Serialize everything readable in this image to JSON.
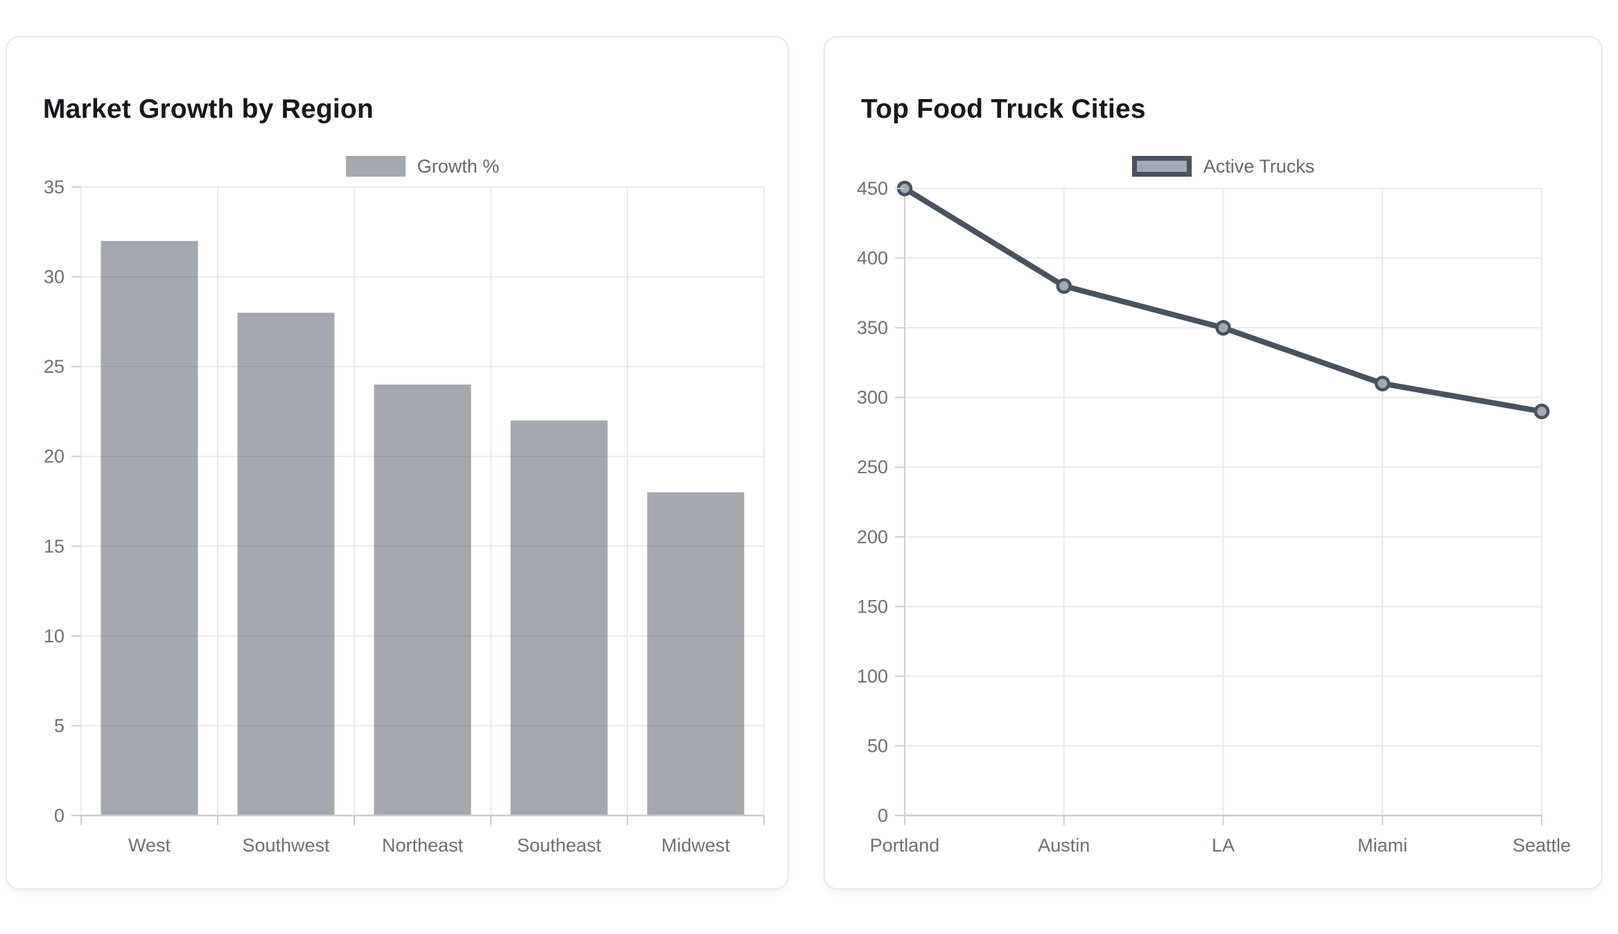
{
  "chart_data": [
    {
      "type": "bar",
      "title": "Market Growth by Region",
      "categories": [
        "West",
        "Southwest",
        "Northeast",
        "Southeast",
        "Midwest"
      ],
      "series": [
        {
          "name": "Growth %",
          "values": [
            32,
            28,
            24,
            22,
            18
          ]
        }
      ],
      "ylim": [
        0,
        35
      ],
      "ytick_step": 5,
      "yticks": [
        0,
        5,
        10,
        15,
        20,
        25,
        30,
        35
      ],
      "legend_position": "top-center",
      "grid": true,
      "colors": {
        "bar_fill": "rgba(73,82,95,0.5)",
        "grid": "#e9eaec",
        "axis": "#cbcdd1",
        "tick_label": "#6b7077",
        "title": "#15181e",
        "legend_label": "#64686e"
      }
    },
    {
      "type": "line",
      "title": "Top Food Truck Cities",
      "categories": [
        "Portland",
        "Austin",
        "LA",
        "Miami",
        "Seattle"
      ],
      "series": [
        {
          "name": "Active Trucks",
          "values": [
            450,
            380,
            350,
            310,
            290
          ]
        }
      ],
      "ylim": [
        0,
        450
      ],
      "ytick_step": 50,
      "yticks": [
        0,
        50,
        100,
        150,
        200,
        250,
        300,
        350,
        400,
        450
      ],
      "legend_position": "top-center",
      "grid": true,
      "colors": {
        "line": "#49525f",
        "point_fill": "#a4aab4",
        "point_border": "#49525f",
        "grid": "#e9eaec",
        "axis": "#cbcdd1",
        "tick_label": "#6b7077",
        "title": "#15181e",
        "legend_label": "#64686e"
      }
    }
  ]
}
